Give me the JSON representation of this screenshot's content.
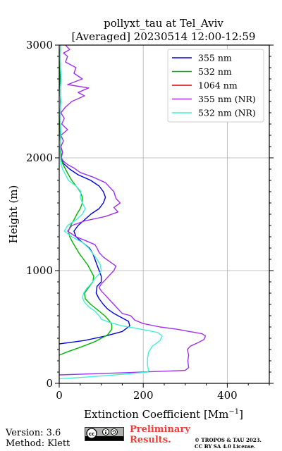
{
  "chart_data": {
    "type": "line",
    "title_line1": "pollyxt_tau at Tel_Aviv",
    "title_line2": "[Averaged] 20230514 12:00-12:59",
    "xlabel": "Extinction Coefficient [Mm",
    "xlabel_sup": "−1",
    "xlabel_end": "]",
    "ylabel": "Height (m)",
    "xlim": [
      0,
      500
    ],
    "ylim": [
      0,
      3000
    ],
    "xticks": [
      0,
      200,
      400
    ],
    "yticks": [
      0,
      1000,
      2000,
      3000
    ],
    "grid": true,
    "legend_position": "top-right",
    "series": [
      {
        "name": "355 nm",
        "color": "#0000dd",
        "points": [
          [
            0,
            350
          ],
          [
            20,
            360
          ],
          [
            60,
            380
          ],
          [
            110,
            420
          ],
          [
            150,
            460
          ],
          [
            168,
            510
          ],
          [
            165,
            550
          ],
          [
            150,
            580
          ],
          [
            130,
            620
          ],
          [
            115,
            660
          ],
          [
            105,
            700
          ],
          [
            95,
            750
          ],
          [
            88,
            800
          ],
          [
            90,
            860
          ],
          [
            100,
            900
          ],
          [
            100,
            950
          ],
          [
            95,
            1000
          ],
          [
            90,
            1050
          ],
          [
            85,
            1100
          ],
          [
            80,
            1150
          ],
          [
            72,
            1200
          ],
          [
            55,
            1250
          ],
          [
            40,
            1300
          ],
          [
            35,
            1350
          ],
          [
            45,
            1400
          ],
          [
            60,
            1450
          ],
          [
            75,
            1500
          ],
          [
            95,
            1550
          ],
          [
            105,
            1600
          ],
          [
            110,
            1650
          ],
          [
            105,
            1700
          ],
          [
            95,
            1750
          ],
          [
            75,
            1800
          ],
          [
            45,
            1850
          ],
          [
            25,
            1900
          ],
          [
            10,
            1950
          ],
          [
            5,
            2000
          ],
          [
            3,
            2100
          ],
          [
            2,
            2300
          ],
          [
            3,
            2500
          ],
          [
            2,
            2700
          ],
          [
            3,
            2800
          ],
          [
            2,
            2900
          ],
          [
            3,
            3000
          ]
        ]
      },
      {
        "name": "532 nm",
        "color": "#00b400",
        "points": [
          [
            0,
            250
          ],
          [
            20,
            280
          ],
          [
            50,
            320
          ],
          [
            85,
            370
          ],
          [
            115,
            430
          ],
          [
            125,
            480
          ],
          [
            125,
            520
          ],
          [
            118,
            560
          ],
          [
            108,
            600
          ],
          [
            92,
            650
          ],
          [
            75,
            700
          ],
          [
            62,
            750
          ],
          [
            60,
            800
          ],
          [
            70,
            850
          ],
          [
            80,
            900
          ],
          [
            82,
            950
          ],
          [
            75,
            1000
          ],
          [
            68,
            1050
          ],
          [
            58,
            1100
          ],
          [
            48,
            1150
          ],
          [
            40,
            1200
          ],
          [
            32,
            1250
          ],
          [
            25,
            1300
          ],
          [
            22,
            1350
          ],
          [
            27,
            1400
          ],
          [
            35,
            1450
          ],
          [
            42,
            1500
          ],
          [
            50,
            1550
          ],
          [
            55,
            1600
          ],
          [
            55,
            1650
          ],
          [
            50,
            1700
          ],
          [
            40,
            1750
          ],
          [
            30,
            1800
          ],
          [
            22,
            1850
          ],
          [
            15,
            1900
          ],
          [
            8,
            1950
          ],
          [
            4,
            2000
          ],
          [
            3,
            2100
          ],
          [
            2,
            2300
          ],
          [
            3,
            2500
          ],
          [
            2,
            2700
          ],
          [
            2,
            2900
          ],
          [
            3,
            3000
          ]
        ]
      },
      {
        "name": "1064 nm",
        "color": "#dd0000",
        "points": []
      },
      {
        "name": "355 nm (NR)",
        "color": "#a030f0",
        "points": [
          [
            0,
            75
          ],
          [
            80,
            85
          ],
          [
            160,
            95
          ],
          [
            230,
            105
          ],
          [
            300,
            115
          ],
          [
            308,
            140
          ],
          [
            306,
            200
          ],
          [
            308,
            250
          ],
          [
            305,
            300
          ],
          [
            312,
            330
          ],
          [
            330,
            360
          ],
          [
            345,
            390
          ],
          [
            348,
            420
          ],
          [
            340,
            440
          ],
          [
            310,
            460
          ],
          [
            280,
            480
          ],
          [
            240,
            500
          ],
          [
            200,
            530
          ],
          [
            180,
            560
          ],
          [
            170,
            600
          ],
          [
            150,
            620
          ],
          [
            140,
            660
          ],
          [
            130,
            700
          ],
          [
            120,
            740
          ],
          [
            110,
            780
          ],
          [
            100,
            820
          ],
          [
            95,
            850
          ],
          [
            100,
            880
          ],
          [
            110,
            920
          ],
          [
            120,
            960
          ],
          [
            130,
            1000
          ],
          [
            135,
            1040
          ],
          [
            120,
            1080
          ],
          [
            105,
            1120
          ],
          [
            95,
            1160
          ],
          [
            90,
            1200
          ],
          [
            85,
            1230
          ],
          [
            60,
            1270
          ],
          [
            40,
            1300
          ],
          [
            20,
            1350
          ],
          [
            30,
            1400
          ],
          [
            60,
            1440
          ],
          [
            110,
            1480
          ],
          [
            140,
            1520
          ],
          [
            130,
            1560
          ],
          [
            145,
            1600
          ],
          [
            135,
            1640
          ],
          [
            130,
            1700
          ],
          [
            120,
            1740
          ],
          [
            110,
            1780
          ],
          [
            80,
            1830
          ],
          [
            50,
            1870
          ],
          [
            35,
            1910
          ],
          [
            20,
            1940
          ],
          [
            10,
            1970
          ],
          [
            5,
            2000
          ],
          [
            8,
            2050
          ],
          [
            4,
            2100
          ],
          [
            10,
            2150
          ],
          [
            4,
            2200
          ],
          [
            20,
            2250
          ],
          [
            6,
            2300
          ],
          [
            12,
            2350
          ],
          [
            4,
            2400
          ],
          [
            15,
            2450
          ],
          [
            30,
            2500
          ],
          [
            60,
            2550
          ],
          [
            45,
            2580
          ],
          [
            70,
            2620
          ],
          [
            20,
            2650
          ],
          [
            55,
            2700
          ],
          [
            35,
            2750
          ],
          [
            40,
            2800
          ],
          [
            15,
            2850
          ],
          [
            20,
            2900
          ],
          [
            10,
            2930
          ],
          [
            25,
            2960
          ],
          [
            15,
            3000
          ]
        ]
      },
      {
        "name": "532 nm (NR)",
        "color": "#40f0d8",
        "points": [
          [
            0,
            40
          ],
          [
            80,
            60
          ],
          [
            150,
            80
          ],
          [
            210,
            100
          ],
          [
            213,
            110
          ],
          [
            210,
            160
          ],
          [
            210,
            220
          ],
          [
            213,
            280
          ],
          [
            222,
            330
          ],
          [
            240,
            380
          ],
          [
            245,
            420
          ],
          [
            235,
            450
          ],
          [
            210,
            470
          ],
          [
            180,
            490
          ],
          [
            150,
            510
          ],
          [
            120,
            540
          ],
          [
            100,
            570
          ],
          [
            95,
            600
          ],
          [
            85,
            640
          ],
          [
            70,
            680
          ],
          [
            60,
            720
          ],
          [
            55,
            760
          ],
          [
            58,
            800
          ],
          [
            65,
            840
          ],
          [
            75,
            880
          ],
          [
            85,
            930
          ],
          [
            95,
            970
          ],
          [
            100,
            1000
          ],
          [
            98,
            1050
          ],
          [
            90,
            1100
          ],
          [
            80,
            1150
          ],
          [
            70,
            1200
          ],
          [
            55,
            1250
          ],
          [
            30,
            1300
          ],
          [
            12,
            1350
          ],
          [
            20,
            1400
          ],
          [
            40,
            1450
          ],
          [
            55,
            1500
          ],
          [
            62,
            1550
          ],
          [
            55,
            1600
          ],
          [
            50,
            1650
          ],
          [
            52,
            1700
          ],
          [
            40,
            1750
          ],
          [
            22,
            1800
          ],
          [
            15,
            1850
          ],
          [
            8,
            1900
          ],
          [
            4,
            1950
          ],
          [
            3,
            2000
          ],
          [
            2,
            2100
          ],
          [
            4,
            2200
          ],
          [
            3,
            2300
          ],
          [
            2,
            2400
          ],
          [
            4,
            2500
          ],
          [
            2,
            2600
          ],
          [
            5,
            2700
          ],
          [
            3,
            2800
          ],
          [
            2,
            2900
          ],
          [
            3,
            3000
          ]
        ]
      }
    ]
  },
  "footer": {
    "version": "Version: 3.6",
    "method": "Method: Klett",
    "preliminary_line1": "Preliminary",
    "preliminary_line2": "Results.",
    "license_line1": "© TROPOS & TAU 2023.",
    "license_line2": "CC BY SA 4.0 License."
  }
}
